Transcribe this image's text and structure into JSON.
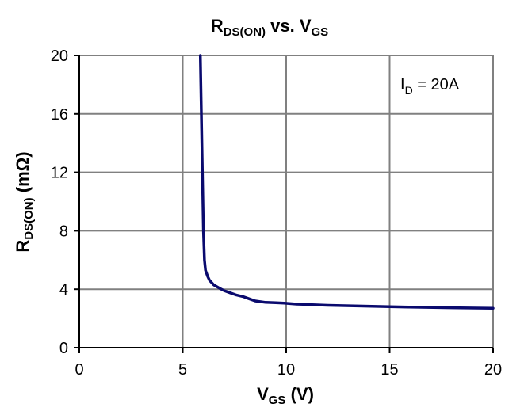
{
  "chart_data": {
    "type": "line",
    "title": {
      "main": "R",
      "main_sub": "DS(ON)",
      "mid": " vs. V",
      "mid_sub": "GS"
    },
    "xlabel": {
      "main": "V",
      "sub": "GS",
      "rest": " (V)"
    },
    "ylabel": {
      "main": "R",
      "sub": "DS(ON)",
      "rest": " (mΩ)"
    },
    "annotation": {
      "main": "I",
      "sub": "D",
      "rest": " = 20A"
    },
    "xlim": [
      0,
      20
    ],
    "ylim": [
      0,
      20
    ],
    "xticks": [
      0,
      5,
      10,
      15,
      20
    ],
    "yticks": [
      0,
      4,
      8,
      12,
      16,
      20
    ],
    "grid": true,
    "line_color": "#0a0a6e",
    "series": [
      {
        "x": [
          5.85,
          5.9,
          5.95,
          6.0,
          6.05,
          6.1,
          6.2,
          6.3,
          6.5,
          6.8,
          7.0,
          7.3,
          7.6,
          7.9,
          8.2,
          8.5,
          9.0,
          9.5,
          9.9,
          10.5,
          12.0,
          15.0,
          18.0,
          20.0
        ],
        "y": [
          20.0,
          16.0,
          12.0,
          8.0,
          6.0,
          5.3,
          4.9,
          4.6,
          4.3,
          4.05,
          3.9,
          3.75,
          3.6,
          3.5,
          3.35,
          3.2,
          3.1,
          3.08,
          3.05,
          2.98,
          2.9,
          2.8,
          2.73,
          2.7
        ]
      }
    ]
  }
}
